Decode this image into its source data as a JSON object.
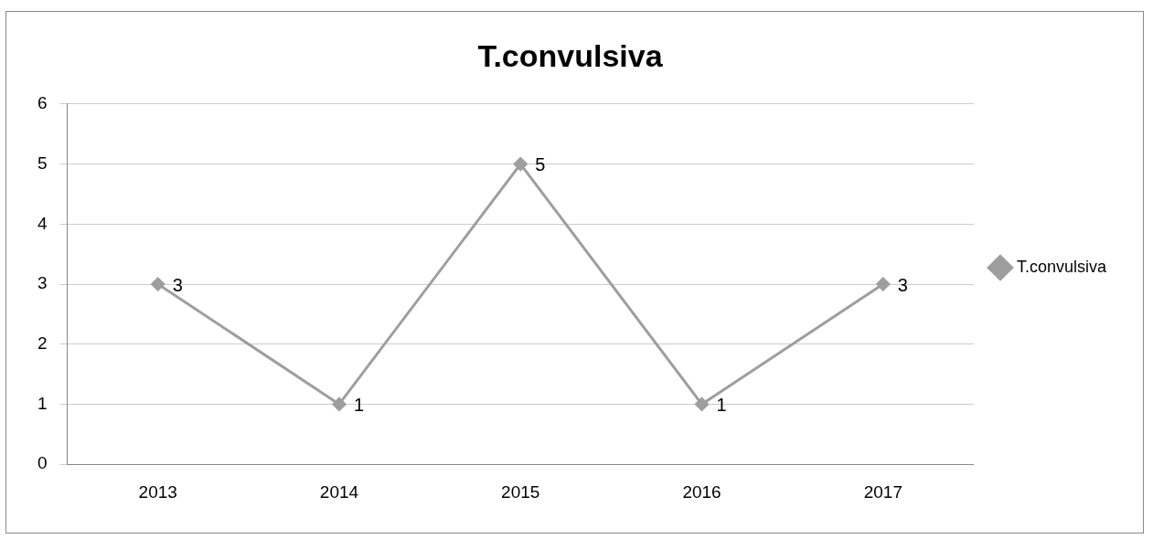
{
  "chart_data": {
    "type": "line",
    "title": "T.convulsiva",
    "categories": [
      "2013",
      "2014",
      "2015",
      "2016",
      "2017"
    ],
    "series": [
      {
        "name": "T.convulsiva",
        "color": "#9e9e9e",
        "values": [
          3,
          1,
          5,
          1,
          3
        ]
      }
    ],
    "ylim": [
      0,
      6
    ],
    "yticks": [
      0,
      1,
      2,
      3,
      4,
      5,
      6
    ],
    "grid": "y",
    "legend": "right",
    "marker": "diamond",
    "data_labels": true
  }
}
